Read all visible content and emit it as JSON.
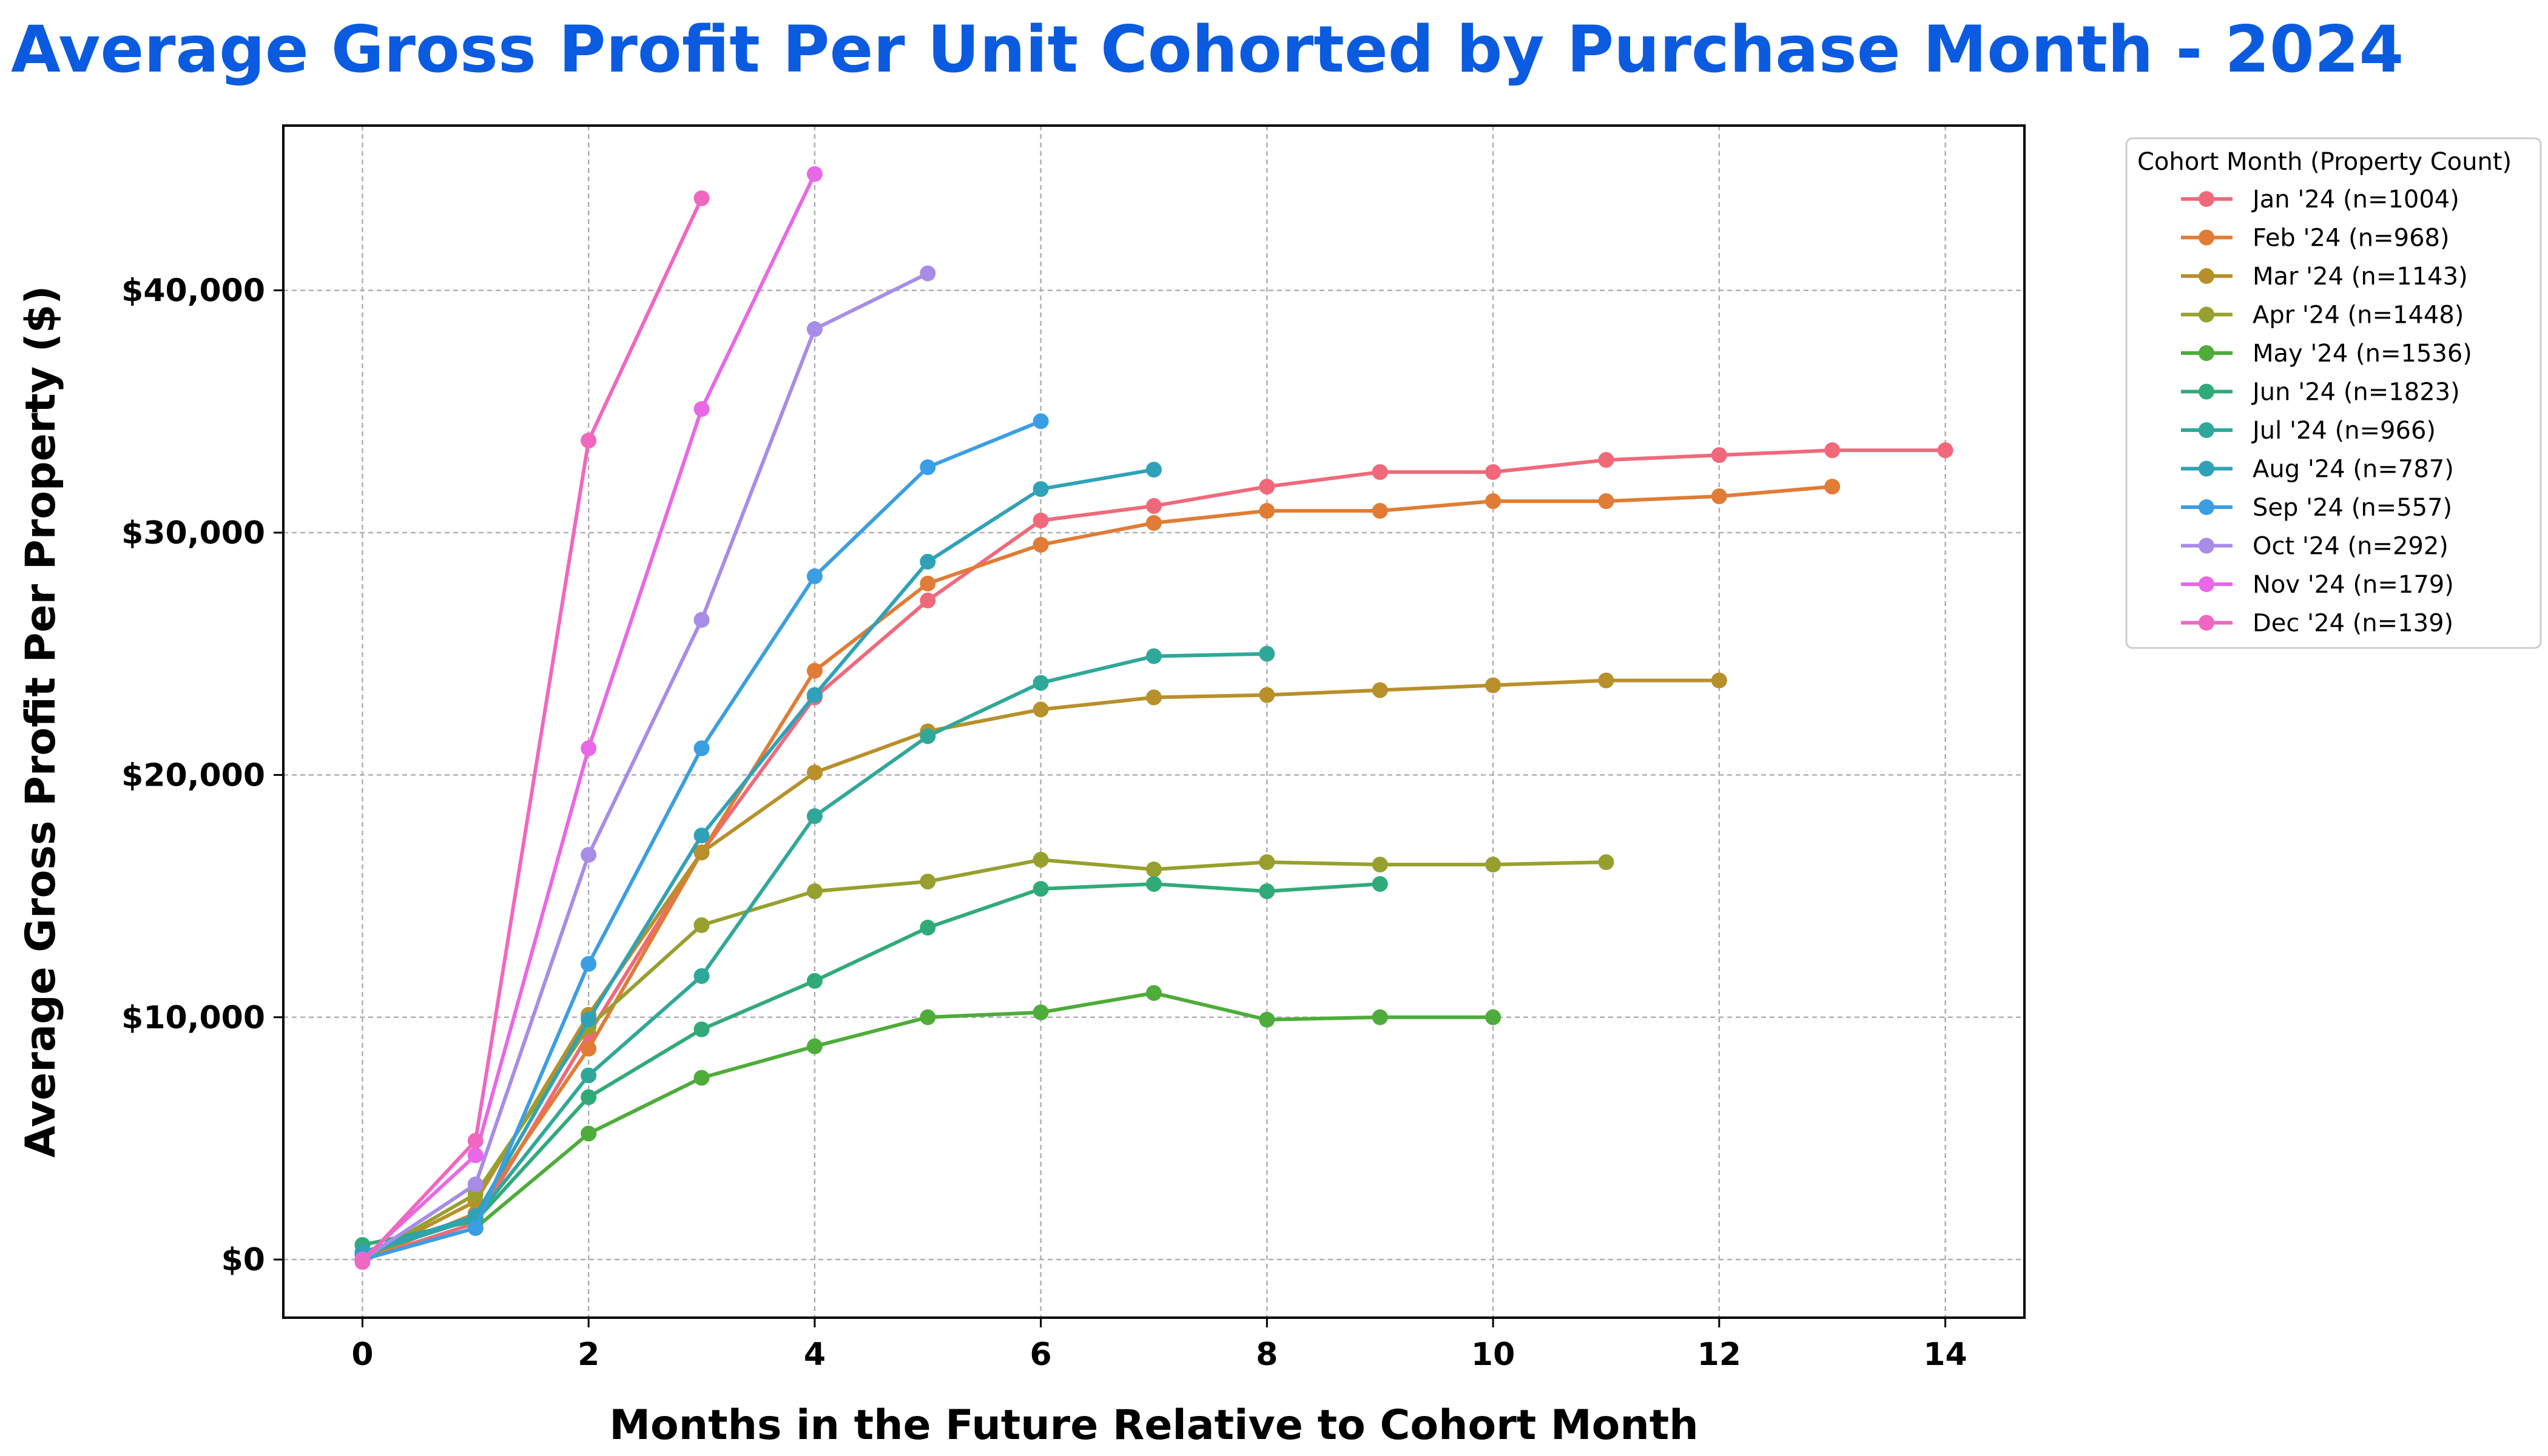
{
  "chart_data": {
    "type": "line",
    "title": "Average Gross Profit Per Unit Cohorted by Purchase Month - 2024",
    "xlabel": "Months in the Future Relative to Cohort Month",
    "ylabel": "Average Gross Profit Per Property ($)",
    "xlim": [
      -0.7,
      14.7
    ],
    "ylim": [
      -2400,
      46800
    ],
    "xticks": [
      0,
      2,
      4,
      6,
      8,
      10,
      12,
      14
    ],
    "yticks": [
      0,
      10000,
      20000,
      30000,
      40000
    ],
    "ytick_labels": [
      "$0",
      "$10,000",
      "$20,000",
      "$30,000",
      "$40,000"
    ],
    "grid": true,
    "legend": {
      "title": "Cohort Month (Property Count)",
      "placement": "outside-top-right"
    },
    "series": [
      {
        "name": "Jan '24 (n=1004)",
        "color": "#f0697a",
        "x": [
          0,
          1,
          2,
          3,
          4,
          5,
          6,
          7,
          8,
          9,
          10,
          11,
          12,
          13,
          14
        ],
        "y": [
          0,
          1500,
          9300,
          16800,
          23200,
          27200,
          30500,
          31100,
          31900,
          32500,
          32500,
          33000,
          33200,
          33400,
          33400
        ]
      },
      {
        "name": "Feb '24 (n=968)",
        "color": "#e07c35",
        "x": [
          0,
          1,
          2,
          3,
          4,
          5,
          6,
          7,
          8,
          9,
          10,
          11,
          12,
          13
        ],
        "y": [
          0,
          1900,
          8700,
          16800,
          24300,
          27900,
          29500,
          30400,
          30900,
          30900,
          31300,
          31300,
          31500,
          31900
        ]
      },
      {
        "name": "Mar '24 (n=1143)",
        "color": "#b8902a",
        "x": [
          0,
          1,
          2,
          3,
          4,
          5,
          6,
          7,
          8,
          9,
          10,
          11,
          12
        ],
        "y": [
          0,
          2400,
          10100,
          16800,
          20100,
          21800,
          22700,
          23200,
          23300,
          23500,
          23700,
          23900,
          23900
        ]
      },
      {
        "name": "Apr '24 (n=1448)",
        "color": "#97a02e",
        "x": [
          0,
          1,
          2,
          3,
          4,
          5,
          6,
          7,
          8,
          9,
          10,
          11
        ],
        "y": [
          0,
          2700,
          9600,
          13800,
          15200,
          15600,
          16500,
          16100,
          16400,
          16300,
          16300,
          16400
        ]
      },
      {
        "name": "May '24 (n=1536)",
        "color": "#4eac3a",
        "x": [
          0,
          1,
          2,
          3,
          4,
          5,
          6,
          7,
          8,
          9,
          10
        ],
        "y": [
          0,
          1300,
          5200,
          7500,
          8800,
          10000,
          10200,
          11000,
          9900,
          10000,
          10000
        ]
      },
      {
        "name": "Jun '24 (n=1823)",
        "color": "#31aa7a",
        "x": [
          0,
          1,
          2,
          3,
          4,
          5,
          6,
          7,
          8,
          9
        ],
        "y": [
          600,
          1600,
          6700,
          9500,
          11500,
          13700,
          15300,
          15500,
          15200,
          15500
        ]
      },
      {
        "name": "Jul '24 (n=966)",
        "color": "#2fa899",
        "x": [
          0,
          1,
          2,
          3,
          4,
          5,
          6,
          7,
          8
        ],
        "y": [
          200,
          1700,
          7600,
          11700,
          18300,
          21600,
          23800,
          24900,
          25000
        ]
      },
      {
        "name": "Aug '24 (n=787)",
        "color": "#2fa2b7",
        "x": [
          0,
          1,
          2,
          3,
          4,
          5,
          6,
          7
        ],
        "y": [
          300,
          1800,
          9900,
          17500,
          23300,
          28800,
          31800,
          32600
        ]
      },
      {
        "name": "Sep '24 (n=557)",
        "color": "#3b9ee3",
        "x": [
          0,
          1,
          2,
          3,
          4,
          5,
          6
        ],
        "y": [
          0,
          1300,
          12200,
          21100,
          28200,
          32700,
          34600
        ]
      },
      {
        "name": "Oct '24 (n=292)",
        "color": "#a78ce8",
        "x": [
          0,
          1,
          2,
          3,
          4,
          5
        ],
        "y": [
          0,
          3100,
          16700,
          26400,
          38400,
          40700
        ]
      },
      {
        "name": "Nov '24 (n=179)",
        "color": "#e868e6",
        "x": [
          0,
          1,
          2,
          3,
          4
        ],
        "y": [
          0,
          4300,
          21100,
          35100,
          44800
        ]
      },
      {
        "name": "Dec '24 (n=139)",
        "color": "#f067c0",
        "x": [
          0,
          1,
          2,
          3
        ],
        "y": [
          -100,
          4900,
          33800,
          43800
        ]
      }
    ]
  }
}
